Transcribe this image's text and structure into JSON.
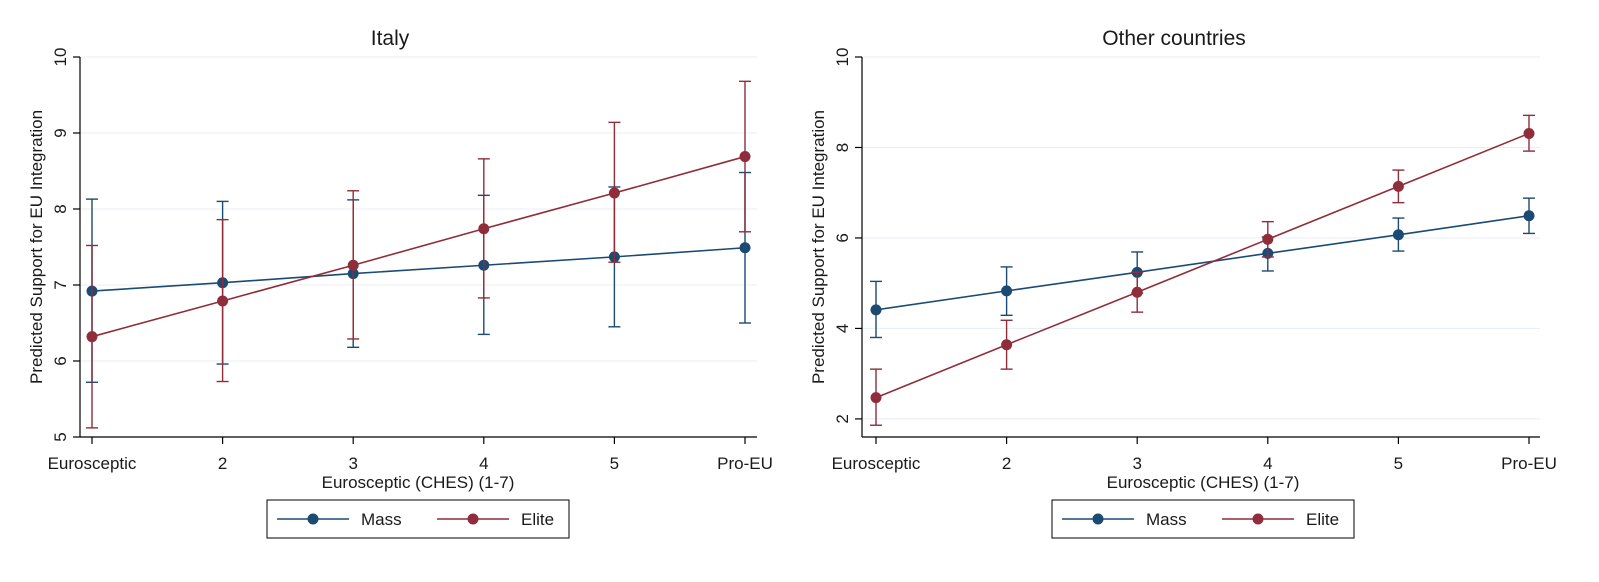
{
  "chart_data": [
    {
      "type": "line",
      "title": "Italy",
      "xlabel": "Eurosceptic (CHES) (1-7)",
      "ylabel": "Predicted Support for EU Integration",
      "categories": [
        "Eurosceptic",
        "2",
        "3",
        "4",
        "5",
        "Pro-EU"
      ],
      "x": [
        1,
        2,
        3,
        4,
        5,
        6
      ],
      "ylim": [
        5,
        10
      ],
      "yticks": [
        5,
        6,
        7,
        8,
        9,
        10
      ],
      "series": [
        {
          "name": "Mass",
          "color": "#1b4a73",
          "values": [
            6.92,
            7.03,
            7.15,
            7.26,
            7.37,
            7.49
          ],
          "lower": [
            5.72,
            5.96,
            6.18,
            6.35,
            6.45,
            6.5
          ],
          "upper": [
            8.13,
            8.1,
            8.12,
            8.18,
            8.29,
            8.48
          ]
        },
        {
          "name": "Elite",
          "color": "#8f2d3a",
          "values": [
            6.32,
            6.79,
            7.26,
            7.74,
            8.21,
            8.69
          ],
          "lower": [
            5.12,
            5.73,
            6.29,
            6.83,
            7.3,
            7.7
          ],
          "upper": [
            7.52,
            7.86,
            8.24,
            8.66,
            9.14,
            9.68
          ]
        }
      ],
      "legend": "bottom"
    },
    {
      "type": "line",
      "title": "Other countries",
      "xlabel": "Eurosceptic (CHES) (1-7)",
      "ylabel": "Predicted Support for EU Integration",
      "categories": [
        "Eurosceptic",
        "2",
        "3",
        "4",
        "5",
        "Pro-EU"
      ],
      "x": [
        1,
        2,
        3,
        4,
        5,
        6
      ],
      "ylim": [
        1.6,
        10
      ],
      "yticks": [
        2,
        4,
        6,
        8,
        10
      ],
      "series": [
        {
          "name": "Mass",
          "color": "#1b4a73",
          "values": [
            4.41,
            4.83,
            5.24,
            5.66,
            6.07,
            6.49
          ],
          "lower": [
            3.8,
            4.29,
            4.78,
            5.27,
            5.71,
            6.1
          ],
          "upper": [
            5.04,
            5.36,
            5.69,
            6.02,
            6.44,
            6.88
          ]
        },
        {
          "name": "Elite",
          "color": "#8f2d3a",
          "values": [
            2.47,
            3.64,
            4.8,
            5.97,
            7.14,
            8.31
          ],
          "lower": [
            1.86,
            3.1,
            4.36,
            5.58,
            6.78,
            7.92
          ],
          "upper": [
            3.1,
            4.18,
            5.24,
            6.36,
            7.5,
            8.71
          ]
        }
      ],
      "legend": "bottom"
    }
  ]
}
